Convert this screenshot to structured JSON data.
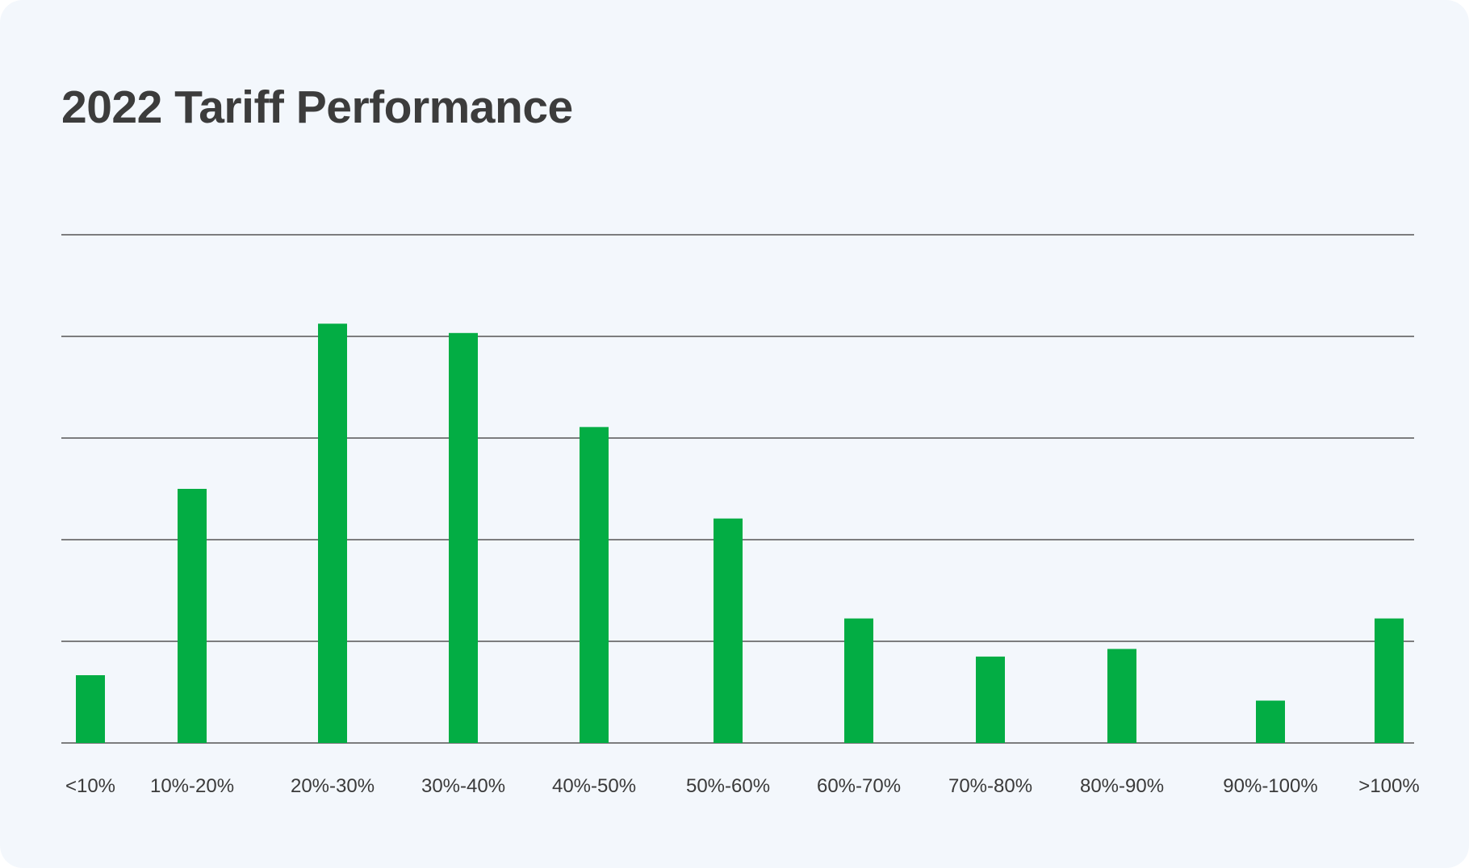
{
  "chart_data": {
    "type": "bar",
    "title": "2022 Tariff Performance",
    "xlabel": "",
    "ylabel": "",
    "categories": [
      "<10%",
      "10%-20%",
      "20%-30%",
      "30%-40%",
      "40%-50%",
      "50%-60%",
      "60%-70%",
      "70%-80%",
      "80%-90%",
      "90%-100%",
      ">100%"
    ],
    "values": [
      8,
      30,
      49.5,
      48.4,
      37.3,
      26.5,
      14.7,
      10.2,
      11.1,
      5,
      14.7
    ],
    "ylim": [
      0,
      60
    ],
    "gridlines": [
      0,
      12,
      24,
      36,
      48,
      60
    ],
    "grid": true,
    "y_tick_labels_shown": false,
    "legend": "none",
    "colors": {
      "bar": "#03ad44",
      "background": "#f3f7fc",
      "gridline": "#555555",
      "title": "#3c3c3c"
    }
  }
}
